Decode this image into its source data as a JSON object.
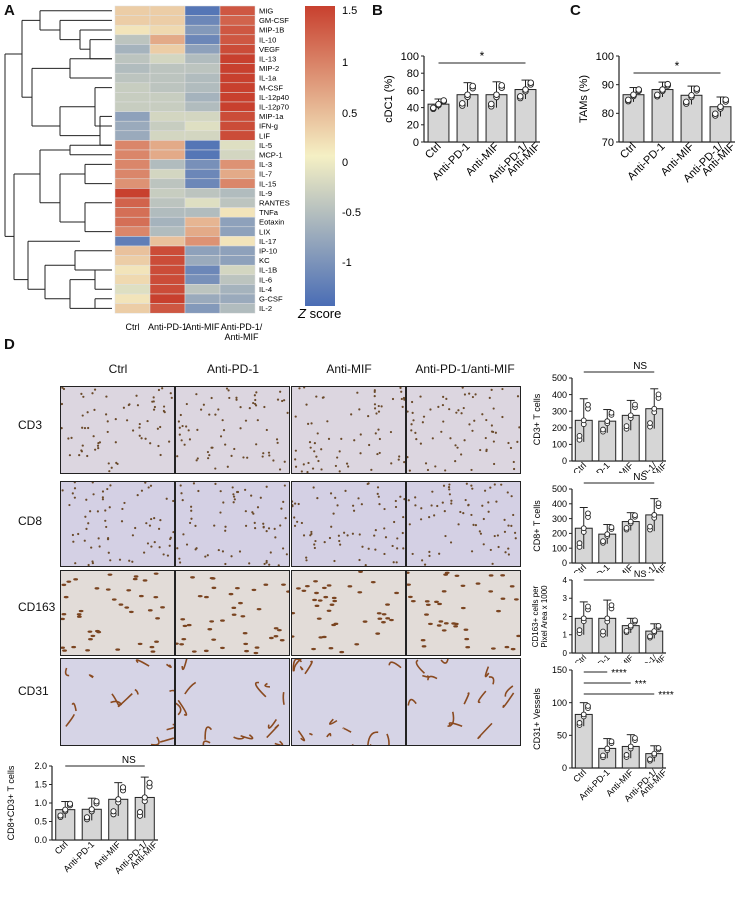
{
  "panels": {
    "A": "A",
    "B": "B",
    "C": "C",
    "D": "D"
  },
  "heatmap": {
    "rows": [
      "MIG",
      "GM-CSF",
      "MIP-1B",
      "IL-10",
      "VEGF",
      "IL-13",
      "MIP-2",
      "IL-1a",
      "M-CSF",
      "IL-12p40",
      "IL-12p70",
      "MIP-1a",
      "IFN-g",
      "LIF",
      "IL-5",
      "MCP-1",
      "IL-3",
      "IL-7",
      "IL-15",
      "IL-9",
      "RANTES",
      "TNFa",
      "Eotaxin",
      "LIX",
      "IL-17",
      "IP-10",
      "KC",
      "IL-1B",
      "IL-6",
      "IL-4",
      "G-CSF",
      "IL-2"
    ],
    "columns": [
      "Ctrl",
      "Anti-PD-1",
      "Anti-MIF",
      "Anti-PD-1/ Anti-MIF"
    ],
    "values": [
      [
        0.3,
        0.3,
        -1.4,
        1.3
      ],
      [
        0.3,
        0.3,
        -1.2,
        1.2
      ],
      [
        0.1,
        0.2,
        -1.0,
        1.3
      ],
      [
        -0.5,
        0.6,
        -1.2,
        1.3
      ],
      [
        -0.7,
        0.3,
        -0.9,
        1.4
      ],
      [
        -0.5,
        -0.3,
        -0.6,
        1.5
      ],
      [
        -0.6,
        -0.5,
        -0.5,
        1.5
      ],
      [
        -0.5,
        -0.5,
        -0.6,
        1.5
      ],
      [
        -0.4,
        -0.5,
        -0.6,
        1.5
      ],
      [
        -0.4,
        -0.4,
        -0.7,
        1.5
      ],
      [
        -0.4,
        -0.4,
        -0.6,
        1.5
      ],
      [
        -0.9,
        -0.3,
        -0.3,
        1.4
      ],
      [
        -0.8,
        -0.4,
        -0.2,
        1.4
      ],
      [
        -0.8,
        -0.3,
        -0.3,
        1.4
      ],
      [
        0.9,
        0.6,
        -1.4,
        -0.2
      ],
      [
        0.9,
        0.6,
        -1.4,
        -0.3
      ],
      [
        0.9,
        -0.6,
        -1.1,
        0.8
      ],
      [
        0.9,
        -0.3,
        -1.2,
        0.6
      ],
      [
        0.8,
        -0.5,
        -1.2,
        0.9
      ],
      [
        1.5,
        -0.4,
        -0.5,
        -0.6
      ],
      [
        1.2,
        -0.5,
        -0.2,
        -0.5
      ],
      [
        1.1,
        -0.6,
        -0.6,
        0.1
      ],
      [
        1.1,
        -0.7,
        0.5,
        -0.9
      ],
      [
        0.9,
        -0.6,
        0.6,
        -0.9
      ],
      [
        -1.3,
        0.4,
        0.8,
        0.1
      ],
      [
        0.4,
        1.4,
        -0.9,
        -0.9
      ],
      [
        0.3,
        1.4,
        -0.8,
        -0.9
      ],
      [
        0.1,
        1.4,
        -1.2,
        -0.3
      ],
      [
        0.2,
        1.4,
        -1.1,
        -0.5
      ],
      [
        -0.2,
        1.4,
        -0.5,
        -0.7
      ],
      [
        0.1,
        1.5,
        -0.8,
        -0.8
      ],
      [
        0.3,
        1.3,
        -1.0,
        -0.6
      ]
    ],
    "colorbar_ticks": [
      "1.5",
      "1",
      "0.5",
      "0",
      "-0.5",
      "-1"
    ],
    "zscore_label_italic": "Z",
    "zscore_label": "score",
    "colors": {
      "high": "#c8402e",
      "mid": "#f5f0c4",
      "low": "#4a6db5"
    }
  },
  "chart_data": [
    {
      "type": "bar",
      "panel": "B",
      "ylabel": "cDC1 (%)",
      "ylim": [
        0,
        100
      ],
      "yticks": [
        "0",
        "20",
        "40",
        "60",
        "80",
        "100"
      ],
      "categories": [
        "Ctrl",
        "Anti-PD-1",
        "Anti-MIF",
        "Anti-PD-1/ Anti-MIF"
      ],
      "values": [
        44,
        55,
        55,
        61
      ],
      "errors": [
        6,
        14,
        15,
        11
      ],
      "significance": "*"
    },
    {
      "type": "bar",
      "panel": "C",
      "ylabel": "TAMs (%)",
      "ylim": [
        70,
        100
      ],
      "yticks": [
        "70",
        "80",
        "90",
        "100"
      ],
      "categories": [
        "Ctrl",
        "Anti-PD-1",
        "Anti-MIF",
        "Anti-PD-1/ Anti-MIF"
      ],
      "values": [
        86.5,
        88.3,
        86.3,
        82.3
      ],
      "errors": [
        2.5,
        2.6,
        3.2,
        3.4
      ],
      "significance": "*"
    },
    {
      "type": "bar",
      "panel": "D-CD3",
      "ylabel": "CD3+ T cells",
      "ylim": [
        0,
        500
      ],
      "yticks": [
        "0",
        "100",
        "200",
        "300",
        "400",
        "500"
      ],
      "categories": [
        "Ctrl",
        "Anti-PD-1",
        "Anti-MIF",
        "Anti-PD-1/ Anti-MIF"
      ],
      "values": [
        245,
        240,
        275,
        315
      ],
      "errors": [
        130,
        70,
        90,
        120
      ],
      "significance": "NS"
    },
    {
      "type": "bar",
      "panel": "D-CD8",
      "ylabel": "CD8+ T cells",
      "ylim": [
        0,
        500
      ],
      "yticks": [
        "0",
        "100",
        "200",
        "300",
        "400",
        "500"
      ],
      "categories": [
        "Ctrl",
        "Anti-PD-1",
        "Anti-MIF",
        "Anti-PD-1/ Anti-MIF"
      ],
      "values": [
        235,
        195,
        280,
        325
      ],
      "errors": [
        140,
        65,
        60,
        110
      ],
      "significance": "NS"
    },
    {
      "type": "bar",
      "panel": "D-CD163",
      "ylabel": "CD163+ cells per Pixel Area x 1000",
      "ylim": [
        0,
        4
      ],
      "yticks": [
        "0",
        "1",
        "2",
        "3",
        "4"
      ],
      "categories": [
        "Ctrl",
        "Anti-PD-1",
        "Anti-MIF",
        "Anti-PD-1/ Anti-MIF"
      ],
      "values": [
        1.9,
        1.9,
        1.5,
        1.2
      ],
      "errors": [
        0.9,
        1.0,
        0.4,
        0.4
      ],
      "significance": "NS"
    },
    {
      "type": "bar",
      "panel": "D-CD31",
      "ylabel": "CD31+ Vessels",
      "ylim": [
        0,
        150
      ],
      "yticks": [
        "0",
        "50",
        "100",
        "150"
      ],
      "categories": [
        "Ctrl",
        "Anti-PD-1",
        "Anti-MIF",
        "Anti-PD-1/ Anti-MIF"
      ],
      "values": [
        82,
        30,
        33,
        22
      ],
      "errors": [
        18,
        15,
        18,
        12
      ],
      "significance_lines": [
        "****",
        "***",
        "****"
      ]
    },
    {
      "type": "bar",
      "panel": "D-CD8CD3",
      "ylabel": "CD8+CD3+ T cells",
      "ylim": [
        0,
        2.0
      ],
      "yticks": [
        "0.0",
        "0.5",
        "1.0",
        "1.5",
        "2.0"
      ],
      "categories": [
        "Ctrl",
        "Anti-PD-1",
        "Anti-MIF",
        "Anti-PD-1/ Anti-MIF"
      ],
      "values": [
        0.82,
        0.83,
        1.1,
        1.15
      ],
      "errors": [
        0.22,
        0.3,
        0.45,
        0.55
      ],
      "significance": "NS"
    }
  ],
  "micrographs": {
    "columns": [
      "Ctrl",
      "Anti-PD-1",
      "Anti-MIF",
      "Anti-PD-1/anti-MIF"
    ],
    "rows": [
      "CD3",
      "CD8",
      "CD163",
      "CD31"
    ]
  }
}
